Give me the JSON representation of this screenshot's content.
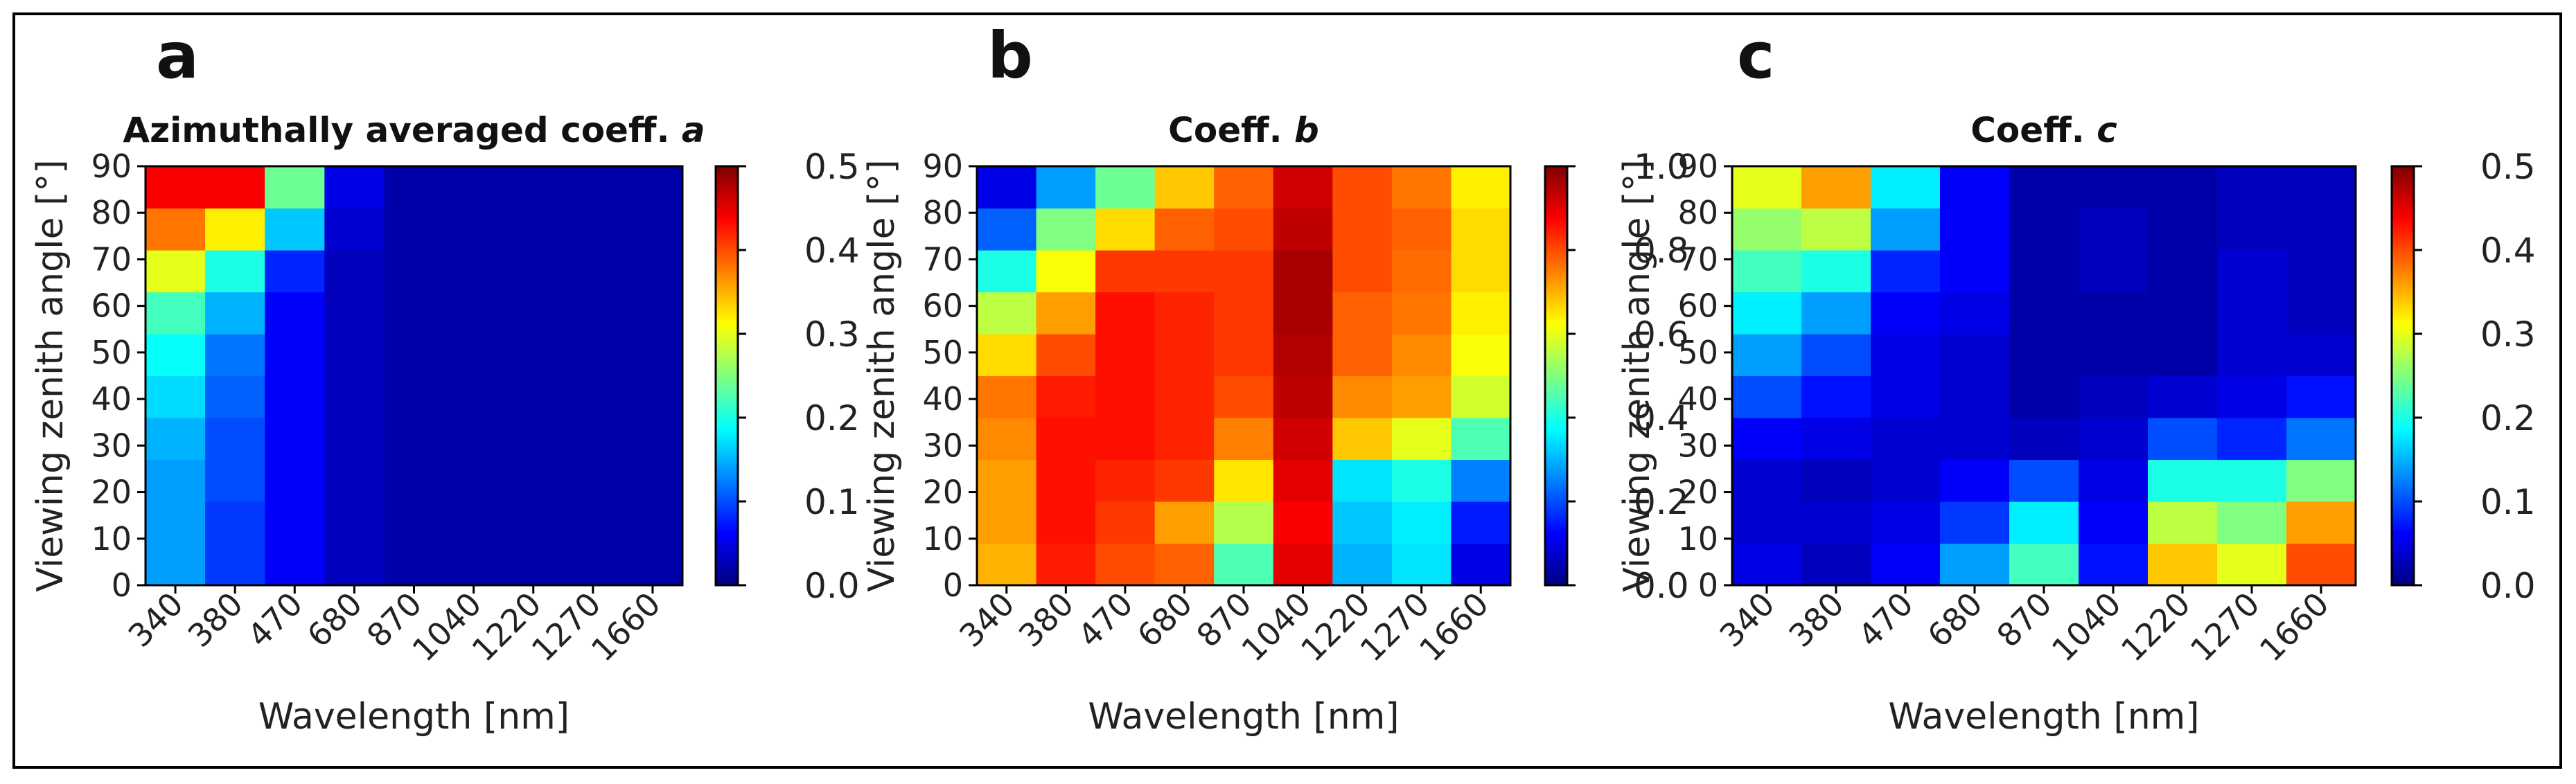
{
  "chart_data": [
    {
      "panel": "a",
      "type": "heatmap",
      "title": "Azimuthally averaged coeff.",
      "title_symbol": "a",
      "xlabel": "Wavelength [nm]",
      "ylabel": "Viewing zenith angle [°]",
      "x_categories": [
        "340",
        "380",
        "470",
        "680",
        "870",
        "1040",
        "1220",
        "1270",
        "1660"
      ],
      "y_ticks": [
        0,
        10,
        20,
        30,
        40,
        50,
        60,
        70,
        80,
        90
      ],
      "ylim": [
        0,
        90
      ],
      "colorbar": {
        "min": 0.0,
        "max": 0.5,
        "ticks": [
          0.0,
          0.1,
          0.2,
          0.3,
          0.4,
          0.5
        ],
        "tick_labels": [
          "0.0",
          "0.1",
          "0.2",
          "0.3",
          "0.4",
          "0.5"
        ]
      },
      "values": [
        [
          0.14,
          0.09,
          0.06,
          0.03,
          0.02,
          0.02,
          0.02,
          0.02,
          0.02
        ],
        [
          0.14,
          0.09,
          0.06,
          0.03,
          0.02,
          0.02,
          0.02,
          0.02,
          0.02
        ],
        [
          0.14,
          0.1,
          0.06,
          0.03,
          0.02,
          0.02,
          0.02,
          0.02,
          0.02
        ],
        [
          0.15,
          0.1,
          0.06,
          0.03,
          0.02,
          0.02,
          0.02,
          0.02,
          0.02
        ],
        [
          0.17,
          0.11,
          0.06,
          0.03,
          0.02,
          0.02,
          0.02,
          0.02,
          0.02
        ],
        [
          0.19,
          0.12,
          0.06,
          0.03,
          0.02,
          0.02,
          0.02,
          0.02,
          0.02
        ],
        [
          0.22,
          0.15,
          0.06,
          0.03,
          0.02,
          0.02,
          0.02,
          0.02,
          0.02
        ],
        [
          0.3,
          0.2,
          0.08,
          0.03,
          0.02,
          0.02,
          0.02,
          0.02,
          0.02
        ],
        [
          0.38,
          0.32,
          0.16,
          0.04,
          0.02,
          0.02,
          0.02,
          0.02,
          0.02
        ],
        [
          0.44,
          0.44,
          0.24,
          0.05,
          0.02,
          0.02,
          0.02,
          0.02,
          0.02
        ]
      ]
    },
    {
      "panel": "b",
      "type": "heatmap",
      "title": "Coeff.",
      "title_symbol": "b",
      "xlabel": "Wavelength [nm]",
      "ylabel": "Viewing zenith angle [°]",
      "x_categories": [
        "340",
        "380",
        "470",
        "680",
        "870",
        "1040",
        "1220",
        "1270",
        "1660"
      ],
      "y_ticks": [
        0,
        10,
        20,
        30,
        40,
        50,
        60,
        70,
        80,
        90
      ],
      "ylim": [
        0,
        90
      ],
      "colorbar": {
        "min": 0.0,
        "max": 1.0,
        "ticks": [
          0.0,
          0.2,
          0.4,
          0.6,
          0.8,
          1.0
        ],
        "tick_labels": [
          "0.0",
          "0.2",
          "0.4",
          "0.6",
          "0.8",
          "1.0"
        ]
      },
      "values": [
        [
          0.7,
          0.85,
          0.8,
          0.78,
          0.45,
          0.9,
          0.3,
          0.35,
          0.1
        ],
        [
          0.72,
          0.86,
          0.82,
          0.72,
          0.55,
          0.88,
          0.32,
          0.36,
          0.15
        ],
        [
          0.72,
          0.86,
          0.84,
          0.82,
          0.65,
          0.9,
          0.35,
          0.4,
          0.25
        ],
        [
          0.74,
          0.86,
          0.86,
          0.84,
          0.75,
          0.92,
          0.68,
          0.6,
          0.45
        ],
        [
          0.76,
          0.85,
          0.86,
          0.84,
          0.8,
          0.94,
          0.74,
          0.72,
          0.58
        ],
        [
          0.66,
          0.8,
          0.86,
          0.84,
          0.82,
          0.95,
          0.78,
          0.74,
          0.62
        ],
        [
          0.56,
          0.72,
          0.86,
          0.84,
          0.82,
          0.96,
          0.78,
          0.76,
          0.64
        ],
        [
          0.4,
          0.62,
          0.82,
          0.82,
          0.82,
          0.96,
          0.8,
          0.77,
          0.66
        ],
        [
          0.22,
          0.5,
          0.66,
          0.78,
          0.8,
          0.94,
          0.8,
          0.78,
          0.66
        ],
        [
          0.1,
          0.28,
          0.48,
          0.68,
          0.78,
          0.92,
          0.8,
          0.76,
          0.64
        ]
      ]
    },
    {
      "panel": "c",
      "type": "heatmap",
      "title": "Coeff.",
      "title_symbol": "c",
      "xlabel": "Wavelength [nm]",
      "ylabel": "Viewing zenith angle [°]",
      "x_categories": [
        "340",
        "380",
        "470",
        "680",
        "870",
        "1040",
        "1220",
        "1270",
        "1660"
      ],
      "y_ticks": [
        0,
        10,
        20,
        30,
        40,
        50,
        60,
        70,
        80,
        90
      ],
      "ylim": [
        0,
        90
      ],
      "colorbar": {
        "min": 0.0,
        "max": 0.5,
        "ticks": [
          0.0,
          0.1,
          0.2,
          0.3,
          0.4,
          0.5
        ],
        "tick_labels": [
          "0.0",
          "0.1",
          "0.2",
          "0.3",
          "0.4",
          "0.5"
        ]
      },
      "values": [
        [
          0.05,
          0.03,
          0.06,
          0.14,
          0.22,
          0.07,
          0.34,
          0.3,
          0.4
        ],
        [
          0.04,
          0.04,
          0.05,
          0.09,
          0.18,
          0.06,
          0.28,
          0.25,
          0.36
        ],
        [
          0.04,
          0.03,
          0.04,
          0.06,
          0.1,
          0.05,
          0.2,
          0.2,
          0.25
        ],
        [
          0.06,
          0.05,
          0.04,
          0.04,
          0.03,
          0.04,
          0.1,
          0.08,
          0.12
        ],
        [
          0.1,
          0.07,
          0.05,
          0.04,
          0.02,
          0.03,
          0.04,
          0.05,
          0.07
        ],
        [
          0.14,
          0.1,
          0.05,
          0.04,
          0.02,
          0.02,
          0.02,
          0.04,
          0.04
        ],
        [
          0.18,
          0.14,
          0.06,
          0.05,
          0.02,
          0.02,
          0.02,
          0.04,
          0.03
        ],
        [
          0.22,
          0.2,
          0.08,
          0.06,
          0.02,
          0.03,
          0.02,
          0.04,
          0.03
        ],
        [
          0.26,
          0.28,
          0.14,
          0.06,
          0.02,
          0.03,
          0.02,
          0.03,
          0.03
        ],
        [
          0.3,
          0.36,
          0.18,
          0.06,
          0.02,
          0.02,
          0.02,
          0.03,
          0.03
        ]
      ]
    }
  ]
}
